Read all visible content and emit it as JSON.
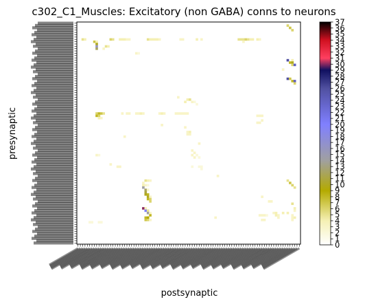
{
  "chart_data": {
    "type": "heatmap",
    "title": "c302_C1_Muscles: Excitatory (non GABA) conns to neurons",
    "xlabel": "postsynaptic",
    "ylabel": "presynaptic",
    "n_rows": 96,
    "n_cols": 96,
    "value_range": [
      0,
      37
    ],
    "colorbar": {
      "ticks": [
        0,
        1,
        2,
        3,
        4,
        5,
        6,
        7,
        8,
        9,
        10,
        11,
        12,
        13,
        14,
        15,
        16,
        17,
        18,
        19,
        20,
        21,
        22,
        23,
        24,
        25,
        26,
        27,
        28,
        29,
        30,
        31,
        32,
        33,
        34,
        35,
        36,
        37
      ],
      "colormap": "gist_stern_r",
      "stops": [
        {
          "value": 0,
          "color": "#ffffff"
        },
        {
          "value": 4,
          "color": "#f5f0b4"
        },
        {
          "value": 9,
          "color": "#b4aa00"
        },
        {
          "value": 14,
          "color": "#a0a0a0"
        },
        {
          "value": 20,
          "color": "#8080ff"
        },
        {
          "value": 26,
          "color": "#5050a0"
        },
        {
          "value": 29,
          "color": "#101060"
        },
        {
          "value": 31,
          "color": "#ff4060"
        },
        {
          "value": 34,
          "color": "#d01020"
        },
        {
          "value": 37,
          "color": "#000000"
        }
      ]
    },
    "cells": [
      {
        "row": 1,
        "col": 90,
        "value": 6
      },
      {
        "row": 2,
        "col": 91,
        "value": 7
      },
      {
        "row": 3,
        "col": 92,
        "value": 6
      },
      {
        "row": 7,
        "col": 2,
        "value": 5
      },
      {
        "row": 7,
        "col": 3,
        "value": 4
      },
      {
        "row": 7,
        "col": 14,
        "value": 6
      },
      {
        "row": 7,
        "col": 15,
        "value": 5
      },
      {
        "row": 7,
        "col": 18,
        "value": 4
      },
      {
        "row": 7,
        "col": 19,
        "value": 4
      },
      {
        "row": 7,
        "col": 20,
        "value": 4
      },
      {
        "row": 7,
        "col": 21,
        "value": 3
      },
      {
        "row": 7,
        "col": 22,
        "value": 3
      },
      {
        "row": 7,
        "col": 30,
        "value": 5
      },
      {
        "row": 7,
        "col": 31,
        "value": 4
      },
      {
        "row": 7,
        "col": 32,
        "value": 4
      },
      {
        "row": 7,
        "col": 33,
        "value": 4
      },
      {
        "row": 7,
        "col": 34,
        "value": 4
      },
      {
        "row": 7,
        "col": 35,
        "value": 3
      },
      {
        "row": 7,
        "col": 44,
        "value": 3
      },
      {
        "row": 7,
        "col": 45,
        "value": 3
      },
      {
        "row": 7,
        "col": 51,
        "value": 4
      },
      {
        "row": 7,
        "col": 53,
        "value": 3
      },
      {
        "row": 7,
        "col": 69,
        "value": 5
      },
      {
        "row": 7,
        "col": 70,
        "value": 5
      },
      {
        "row": 7,
        "col": 71,
        "value": 5
      },
      {
        "row": 7,
        "col": 72,
        "value": 6
      },
      {
        "row": 7,
        "col": 73,
        "value": 5
      },
      {
        "row": 7,
        "col": 74,
        "value": 4
      },
      {
        "row": 7,
        "col": 75,
        "value": 4
      },
      {
        "row": 7,
        "col": 77,
        "value": 4
      },
      {
        "row": 7,
        "col": 78,
        "value": 3
      },
      {
        "row": 8,
        "col": 7,
        "value": 7
      },
      {
        "row": 8,
        "col": 8,
        "value": 4
      },
      {
        "row": 8,
        "col": 71,
        "value": 3
      },
      {
        "row": 9,
        "col": 8,
        "value": 10
      },
      {
        "row": 10,
        "col": 8,
        "value": 16
      },
      {
        "row": 10,
        "col": 12,
        "value": 5
      },
      {
        "row": 10,
        "col": 13,
        "value": 4
      },
      {
        "row": 11,
        "col": 8,
        "value": 12
      },
      {
        "row": 11,
        "col": 11,
        "value": 3
      },
      {
        "row": 13,
        "col": 25,
        "value": 3
      },
      {
        "row": 13,
        "col": 26,
        "value": 2
      },
      {
        "row": 16,
        "col": 90,
        "value": 26
      },
      {
        "row": 16,
        "col": 92,
        "value": 4
      },
      {
        "row": 17,
        "col": 91,
        "value": 8
      },
      {
        "row": 17,
        "col": 92,
        "value": 10
      },
      {
        "row": 18,
        "col": 92,
        "value": 6
      },
      {
        "row": 18,
        "col": 93,
        "value": 24
      },
      {
        "row": 20,
        "col": 88,
        "value": 3
      },
      {
        "row": 24,
        "col": 90,
        "value": 26
      },
      {
        "row": 24,
        "col": 91,
        "value": 7
      },
      {
        "row": 25,
        "col": 92,
        "value": 8
      },
      {
        "row": 25,
        "col": 93,
        "value": 24
      },
      {
        "row": 26,
        "col": 93,
        "value": 6
      },
      {
        "row": 32,
        "col": 43,
        "value": 3
      },
      {
        "row": 33,
        "col": 47,
        "value": 4
      },
      {
        "row": 33,
        "col": 48,
        "value": 5
      },
      {
        "row": 34,
        "col": 46,
        "value": 4
      },
      {
        "row": 34,
        "col": 49,
        "value": 3
      },
      {
        "row": 34,
        "col": 50,
        "value": 2
      },
      {
        "row": 35,
        "col": 51,
        "value": 2
      },
      {
        "row": 39,
        "col": 8,
        "value": 6
      },
      {
        "row": 39,
        "col": 9,
        "value": 8
      },
      {
        "row": 39,
        "col": 10,
        "value": 7
      },
      {
        "row": 39,
        "col": 11,
        "value": 5
      },
      {
        "row": 39,
        "col": 19,
        "value": 3
      },
      {
        "row": 39,
        "col": 21,
        "value": 3
      },
      {
        "row": 39,
        "col": 22,
        "value": 3
      },
      {
        "row": 39,
        "col": 25,
        "value": 3
      },
      {
        "row": 39,
        "col": 26,
        "value": 3
      },
      {
        "row": 39,
        "col": 27,
        "value": 4
      },
      {
        "row": 39,
        "col": 28,
        "value": 3
      },
      {
        "row": 39,
        "col": 35,
        "value": 3
      },
      {
        "row": 39,
        "col": 36,
        "value": 4
      },
      {
        "row": 39,
        "col": 37,
        "value": 3
      },
      {
        "row": 39,
        "col": 42,
        "value": 3
      },
      {
        "row": 39,
        "col": 43,
        "value": 3
      },
      {
        "row": 39,
        "col": 44,
        "value": 3
      },
      {
        "row": 39,
        "col": 45,
        "value": 3
      },
      {
        "row": 39,
        "col": 46,
        "value": 3
      },
      {
        "row": 39,
        "col": 47,
        "value": 3
      },
      {
        "row": 40,
        "col": 8,
        "value": 8
      },
      {
        "row": 40,
        "col": 9,
        "value": 6
      },
      {
        "row": 40,
        "col": 77,
        "value": 3
      },
      {
        "row": 40,
        "col": 78,
        "value": 3
      },
      {
        "row": 40,
        "col": 79,
        "value": 3
      },
      {
        "row": 41,
        "col": 9,
        "value": 4
      },
      {
        "row": 41,
        "col": 10,
        "value": 3
      },
      {
        "row": 42,
        "col": 79,
        "value": 3
      },
      {
        "row": 43,
        "col": 77,
        "value": 3
      },
      {
        "row": 43,
        "col": 78,
        "value": 3
      },
      {
        "row": 44,
        "col": 36,
        "value": 3
      },
      {
        "row": 45,
        "col": 46,
        "value": 3
      },
      {
        "row": 47,
        "col": 47,
        "value": 3
      },
      {
        "row": 47,
        "col": 48,
        "value": 4
      },
      {
        "row": 48,
        "col": 47,
        "value": 3
      },
      {
        "row": 48,
        "col": 48,
        "value": 3
      },
      {
        "row": 49,
        "col": 20,
        "value": 3
      },
      {
        "row": 52,
        "col": 52,
        "value": 3
      },
      {
        "row": 55,
        "col": 49,
        "value": 3
      },
      {
        "row": 56,
        "col": 50,
        "value": 3
      },
      {
        "row": 57,
        "col": 8,
        "value": 3
      },
      {
        "row": 57,
        "col": 9,
        "value": 2
      },
      {
        "row": 57,
        "col": 49,
        "value": 3
      },
      {
        "row": 57,
        "col": 51,
        "value": 2
      },
      {
        "row": 58,
        "col": 50,
        "value": 3
      },
      {
        "row": 58,
        "col": 52,
        "value": 2
      },
      {
        "row": 61,
        "col": 14,
        "value": 3
      },
      {
        "row": 62,
        "col": 17,
        "value": 3
      },
      {
        "row": 62,
        "col": 18,
        "value": 3
      },
      {
        "row": 62,
        "col": 49,
        "value": 2
      },
      {
        "row": 62,
        "col": 52,
        "value": 2
      },
      {
        "row": 62,
        "col": 53,
        "value": 2
      },
      {
        "row": 63,
        "col": 53,
        "value": 2
      },
      {
        "row": 66,
        "col": 60,
        "value": 3
      },
      {
        "row": 68,
        "col": 29,
        "value": 5
      },
      {
        "row": 68,
        "col": 30,
        "value": 4
      },
      {
        "row": 68,
        "col": 31,
        "value": 3
      },
      {
        "row": 68,
        "col": 90,
        "value": 5
      },
      {
        "row": 69,
        "col": 28,
        "value": 3
      },
      {
        "row": 69,
        "col": 91,
        "value": 7
      },
      {
        "row": 70,
        "col": 28,
        "value": 4
      },
      {
        "row": 70,
        "col": 29,
        "value": 3
      },
      {
        "row": 70,
        "col": 30,
        "value": 2
      },
      {
        "row": 70,
        "col": 92,
        "value": 6
      },
      {
        "row": 71,
        "col": 28,
        "value": 14
      },
      {
        "row": 71,
        "col": 93,
        "value": 5
      },
      {
        "row": 72,
        "col": 29,
        "value": 12
      },
      {
        "row": 72,
        "col": 30,
        "value": 3
      },
      {
        "row": 73,
        "col": 29,
        "value": 11
      },
      {
        "row": 74,
        "col": 29,
        "value": 10
      },
      {
        "row": 74,
        "col": 30,
        "value": 8
      },
      {
        "row": 75,
        "col": 30,
        "value": 10
      },
      {
        "row": 75,
        "col": 31,
        "value": 3
      },
      {
        "row": 75,
        "col": 79,
        "value": 3
      },
      {
        "row": 76,
        "col": 30,
        "value": 8
      },
      {
        "row": 76,
        "col": 31,
        "value": 6
      },
      {
        "row": 77,
        "col": 31,
        "value": 6
      },
      {
        "row": 77,
        "col": 82,
        "value": 3
      },
      {
        "row": 77,
        "col": 83,
        "value": 3
      },
      {
        "row": 78,
        "col": 92,
        "value": 5
      },
      {
        "row": 80,
        "col": 28,
        "value": 30
      },
      {
        "row": 80,
        "col": 29,
        "value": 4
      },
      {
        "row": 80,
        "col": 93,
        "value": 4
      },
      {
        "row": 81,
        "col": 29,
        "value": 20
      },
      {
        "row": 81,
        "col": 30,
        "value": 5
      },
      {
        "row": 81,
        "col": 93,
        "value": 3
      },
      {
        "row": 82,
        "col": 30,
        "value": 14
      },
      {
        "row": 82,
        "col": 31,
        "value": 3
      },
      {
        "row": 82,
        "col": 84,
        "value": 3
      },
      {
        "row": 82,
        "col": 85,
        "value": 4
      },
      {
        "row": 82,
        "col": 88,
        "value": 4
      },
      {
        "row": 82,
        "col": 90,
        "value": 4
      },
      {
        "row": 83,
        "col": 31,
        "value": 8
      },
      {
        "row": 83,
        "col": 78,
        "value": 3
      },
      {
        "row": 83,
        "col": 79,
        "value": 3
      },
      {
        "row": 83,
        "col": 80,
        "value": 3
      },
      {
        "row": 83,
        "col": 81,
        "value": 2
      },
      {
        "row": 83,
        "col": 85,
        "value": 4
      },
      {
        "row": 83,
        "col": 86,
        "value": 3
      },
      {
        "row": 83,
        "col": 92,
        "value": 3
      },
      {
        "row": 84,
        "col": 29,
        "value": 8
      },
      {
        "row": 84,
        "col": 30,
        "value": 9
      },
      {
        "row": 84,
        "col": 59,
        "value": 3
      },
      {
        "row": 84,
        "col": 86,
        "value": 3
      },
      {
        "row": 84,
        "col": 92,
        "value": 3
      },
      {
        "row": 84,
        "col": 93,
        "value": 4
      },
      {
        "row": 85,
        "col": 29,
        "value": 7
      },
      {
        "row": 85,
        "col": 30,
        "value": 6
      },
      {
        "row": 85,
        "col": 31,
        "value": 3
      },
      {
        "row": 85,
        "col": 79,
        "value": 3
      },
      {
        "row": 85,
        "col": 80,
        "value": 3
      },
      {
        "row": 85,
        "col": 92,
        "value": 3
      },
      {
        "row": 86,
        "col": 5,
        "value": 2
      },
      {
        "row": 86,
        "col": 6,
        "value": 2
      },
      {
        "row": 86,
        "col": 9,
        "value": 2
      },
      {
        "row": 86,
        "col": 10,
        "value": 2
      }
    ]
  }
}
